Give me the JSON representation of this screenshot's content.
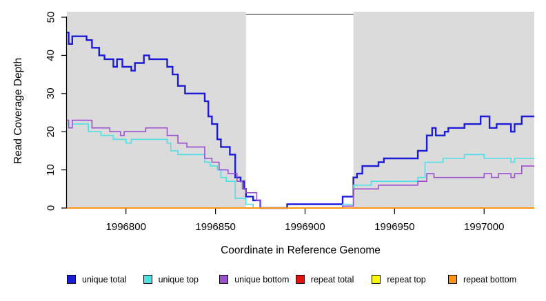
{
  "chart_data": {
    "type": "line",
    "subtype": "step-coverage",
    "title": "",
    "xlabel": "Coordinate in Reference Genome",
    "ylabel": "Read Coverage Depth",
    "xlim": [
      1996767,
      1997028
    ],
    "ylim": [
      0,
      51.5
    ],
    "xticks": [
      1996800,
      1996850,
      1996900,
      1996950,
      1997000
    ],
    "yticks": [
      0,
      10,
      20,
      30,
      40,
      50
    ],
    "grid": "off",
    "legend_position": "bottom",
    "axis_color": "#000000",
    "plot_border_color": "#4d4d4d",
    "background_shading": {
      "color": "#dbdbdb",
      "regions": [
        [
          1996767,
          1996867
        ],
        [
          1996927,
          1997028
        ]
      ]
    },
    "uncovered_gap": [
      1996867,
      1996927
    ],
    "series": [
      {
        "name": "unique total",
        "color": "#1b1bd8",
        "line_width": 2.4,
        "steps": [
          [
            1996767,
            46
          ],
          [
            1996768,
            43
          ],
          [
            1996770,
            45
          ],
          [
            1996778,
            44
          ],
          [
            1996781,
            42
          ],
          [
            1996785,
            40
          ],
          [
            1996788,
            39
          ],
          [
            1996793,
            37
          ],
          [
            1996795,
            39
          ],
          [
            1996798,
            37
          ],
          [
            1996803,
            36
          ],
          [
            1996805,
            38
          ],
          [
            1996810,
            40
          ],
          [
            1996813,
            39
          ],
          [
            1996823,
            37
          ],
          [
            1996826,
            35
          ],
          [
            1996829,
            32
          ],
          [
            1996833,
            30
          ],
          [
            1996844,
            28
          ],
          [
            1996846,
            24
          ],
          [
            1996848,
            22
          ],
          [
            1996851,
            18
          ],
          [
            1996853,
            16
          ],
          [
            1996858,
            14
          ],
          [
            1996861,
            8
          ],
          [
            1996864,
            7
          ],
          [
            1996866,
            5
          ],
          [
            1996867,
            3
          ],
          [
            1996871,
            2
          ],
          [
            1996875,
            0
          ],
          [
            1996890,
            1
          ],
          [
            1996921,
            3
          ],
          [
            1996927,
            8
          ],
          [
            1996929,
            9
          ],
          [
            1996932,
            11
          ],
          [
            1996941,
            12
          ],
          [
            1996944,
            13
          ],
          [
            1996963,
            15
          ],
          [
            1996968,
            19
          ],
          [
            1996971,
            21
          ],
          [
            1996973,
            19
          ],
          [
            1996978,
            20
          ],
          [
            1996980,
            21
          ],
          [
            1996989,
            22
          ],
          [
            1996998,
            24
          ],
          [
            1997003,
            21
          ],
          [
            1997007,
            22
          ],
          [
            1997015,
            20
          ],
          [
            1997017,
            22
          ],
          [
            1997021,
            24
          ]
        ]
      },
      {
        "name": "unique top",
        "color": "#4fe0e6",
        "line_width": 1.6,
        "steps": [
          [
            1996767,
            22
          ],
          [
            1996768,
            21
          ],
          [
            1996770,
            22
          ],
          [
            1996779,
            20
          ],
          [
            1996786,
            19
          ],
          [
            1996793,
            18
          ],
          [
            1996800,
            17
          ],
          [
            1996803,
            18
          ],
          [
            1996823,
            17
          ],
          [
            1996825,
            15
          ],
          [
            1996829,
            14
          ],
          [
            1996844,
            12
          ],
          [
            1996847,
            11
          ],
          [
            1996851,
            10
          ],
          [
            1996853,
            8
          ],
          [
            1996856,
            7
          ],
          [
            1996861,
            2.5
          ],
          [
            1996867,
            1
          ],
          [
            1996871,
            0
          ],
          [
            1996921,
            1
          ],
          [
            1996927,
            6
          ],
          [
            1996937,
            7
          ],
          [
            1996963,
            8
          ],
          [
            1996967,
            12
          ],
          [
            1996977,
            13
          ],
          [
            1996989,
            14
          ],
          [
            1997000,
            13
          ],
          [
            1997015,
            12
          ],
          [
            1997017,
            13
          ]
        ]
      },
      {
        "name": "unique bottom",
        "color": "#9b4fd1",
        "line_width": 1.6,
        "steps": [
          [
            1996767,
            23
          ],
          [
            1996768,
            21
          ],
          [
            1996770,
            23
          ],
          [
            1996781,
            21
          ],
          [
            1996791,
            20
          ],
          [
            1996797,
            19
          ],
          [
            1996799,
            20
          ],
          [
            1996811,
            21
          ],
          [
            1996823,
            19
          ],
          [
            1996829,
            17
          ],
          [
            1996834,
            16
          ],
          [
            1996844,
            13
          ],
          [
            1996848,
            12
          ],
          [
            1996852,
            10
          ],
          [
            1996857,
            9
          ],
          [
            1996862,
            7
          ],
          [
            1996865,
            5
          ],
          [
            1996867,
            4
          ],
          [
            1996873,
            2
          ],
          [
            1996875,
            0
          ],
          [
            1996921,
            0.5
          ],
          [
            1996927,
            5
          ],
          [
            1996941,
            6
          ],
          [
            1996963,
            7
          ],
          [
            1996968,
            9
          ],
          [
            1996972,
            8
          ],
          [
            1997000,
            9
          ],
          [
            1997004,
            8
          ],
          [
            1997008,
            9
          ],
          [
            1997015,
            8
          ],
          [
            1997017,
            9
          ],
          [
            1997021,
            11
          ]
        ]
      },
      {
        "name": "repeat total",
        "color": "#e01111",
        "line_width": 1.6,
        "steps": [
          [
            1996767,
            0
          ]
        ]
      },
      {
        "name": "repeat top",
        "color": "#f8f800",
        "line_width": 1.6,
        "steps": [
          [
            1996767,
            0
          ]
        ]
      },
      {
        "name": "repeat bottom",
        "color": "#ff9412",
        "line_width": 2,
        "steps": [
          [
            1996767,
            0
          ]
        ]
      }
    ]
  },
  "legend": {
    "items": [
      "unique total",
      "unique top",
      "unique bottom",
      "repeat total",
      "repeat top",
      "repeat bottom"
    ]
  }
}
